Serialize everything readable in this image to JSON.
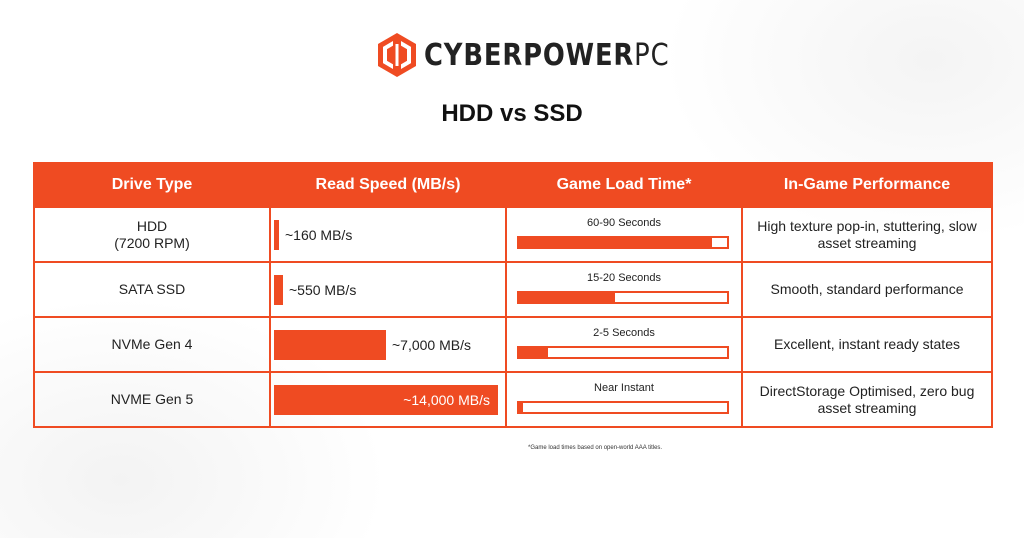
{
  "brand": {
    "name": "CYBERPOWER",
    "suffix": "PC",
    "accent_color": "#ef4b22"
  },
  "chart_data": {
    "type": "table",
    "title": "HDD vs SSD",
    "columns": [
      "Drive Type",
      "Read Speed (MB/s)",
      "Game Load Time*",
      "In-Game Performance"
    ],
    "speed_max_mbps": 14000,
    "rows": [
      {
        "drive_line1": "HDD",
        "drive_line2": "(7200 RPM)",
        "read_speed_mbps": 160,
        "read_speed_label": "~160 MB/s",
        "load_time_label": "60-90 Seconds",
        "load_fill_fraction": 0.93,
        "performance": "High texture pop-in, stuttering, slow asset streaming"
      },
      {
        "drive_line1": "SATA SSD",
        "drive_line2": "",
        "read_speed_mbps": 550,
        "read_speed_label": "~550 MB/s",
        "load_time_label": "15-20 Seconds",
        "load_fill_fraction": 0.46,
        "performance": "Smooth, standard performance"
      },
      {
        "drive_line1": "NVMe Gen 4",
        "drive_line2": "",
        "read_speed_mbps": 7000,
        "read_speed_label": "~7,000 MB/s",
        "load_time_label": "2-5 Seconds",
        "load_fill_fraction": 0.14,
        "performance": "Excellent, instant ready states"
      },
      {
        "drive_line1": "NVME Gen 5",
        "drive_line2": "",
        "read_speed_mbps": 14000,
        "read_speed_label": "~14,000 MB/s",
        "load_time_label": "Near Instant",
        "load_fill_fraction": 0.02,
        "performance": "DirectStorage Optimised, zero bug asset streaming"
      }
    ],
    "footnote": "*Game load times based on open-world AAA titles."
  }
}
